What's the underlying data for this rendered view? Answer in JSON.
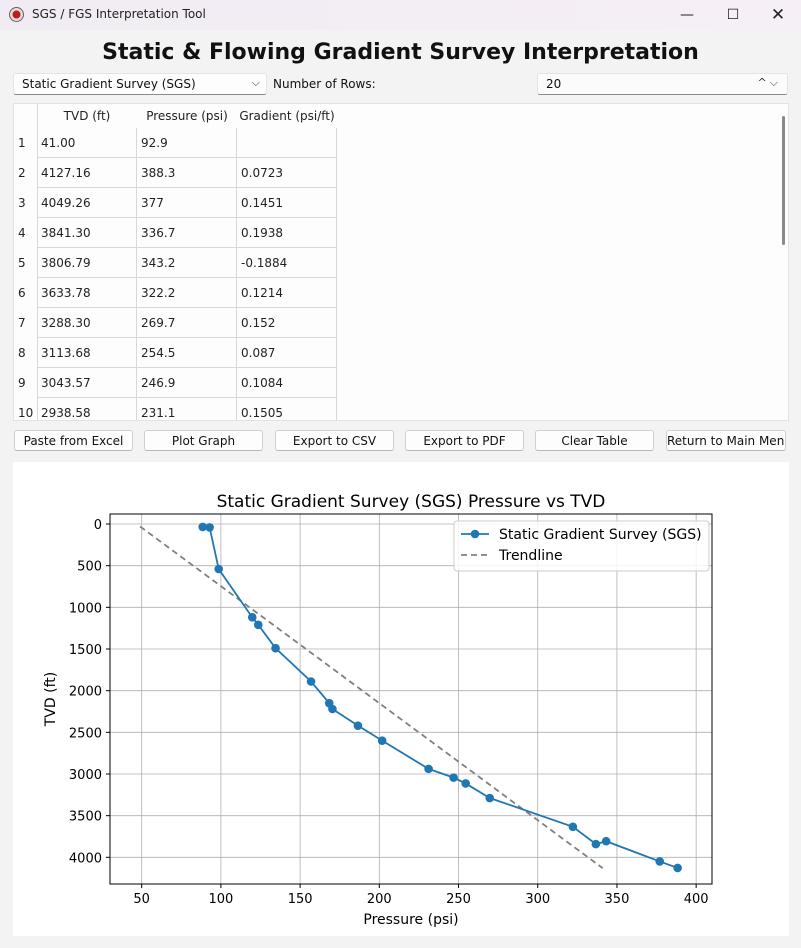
{
  "window": {
    "title": "SGS / FGS Interpretation Tool",
    "minimize_glyph": "—",
    "maximize_glyph": "☐",
    "close_glyph": "✕"
  },
  "heading": "Static & Flowing Gradient Survey Interpretation",
  "survey_select": {
    "value": "Static Gradient Survey (SGS)",
    "caret": "⌵"
  },
  "rows_control": {
    "label": "Number of Rows:",
    "value": "20",
    "arrows": "^⌵"
  },
  "table": {
    "headers": [
      "TVD (ft)",
      "Pressure (psi)",
      "Gradient (psi/ft)"
    ],
    "rows": [
      {
        "n": "1",
        "tvd": "41.00",
        "pressure": "92.9",
        "gradient": ""
      },
      {
        "n": "2",
        "tvd": "4127.16",
        "pressure": "388.3",
        "gradient": "0.0723"
      },
      {
        "n": "3",
        "tvd": "4049.26",
        "pressure": "377",
        "gradient": "0.1451"
      },
      {
        "n": "4",
        "tvd": "3841.30",
        "pressure": "336.7",
        "gradient": "0.1938"
      },
      {
        "n": "5",
        "tvd": "3806.79",
        "pressure": "343.2",
        "gradient": "-0.1884"
      },
      {
        "n": "6",
        "tvd": "3633.78",
        "pressure": "322.2",
        "gradient": "0.1214"
      },
      {
        "n": "7",
        "tvd": "3288.30",
        "pressure": "269.7",
        "gradient": "0.152"
      },
      {
        "n": "8",
        "tvd": "3113.68",
        "pressure": "254.5",
        "gradient": "0.087"
      },
      {
        "n": "9",
        "tvd": "3043.57",
        "pressure": "246.9",
        "gradient": "0.1084"
      },
      {
        "n": "10",
        "tvd": "2938.58",
        "pressure": "231.1",
        "gradient": "0.1505"
      }
    ]
  },
  "buttons": {
    "paste": "Paste from Excel",
    "plot": "Plot Graph",
    "export_csv": "Export to CSV",
    "export_pdf": "Export to PDF",
    "clear": "Clear Table",
    "return": "Return to Main Menu"
  },
  "chart_data": {
    "type": "line",
    "title": "Static Gradient Survey (SGS) Pressure vs TVD",
    "xlabel": "Pressure (psi)",
    "ylabel": "TVD (ft)",
    "xlim": [
      30,
      410
    ],
    "ylim": [
      4320,
      -120
    ],
    "y_inverted": true,
    "xticks": [
      50,
      100,
      150,
      200,
      250,
      300,
      350,
      400
    ],
    "yticks": [
      0,
      500,
      1000,
      1500,
      2000,
      2500,
      3000,
      3500,
      4000
    ],
    "grid": true,
    "legend_position": "top-right",
    "series": [
      {
        "name": "Static Gradient Survey (SGS)",
        "style": "line-markers",
        "color": "#1f77b4",
        "x": [
          88.5,
          92.9,
          98.6,
          119.8,
          123.6,
          134.5,
          156.9,
          168.4,
          170.4,
          186.5,
          201.8,
          231.1,
          246.9,
          254.5,
          269.7,
          322.2,
          336.7,
          343.2,
          377.0,
          388.3
        ],
        "y": [
          35,
          41,
          540,
          1120,
          1210,
          1490,
          1890,
          2150,
          2220,
          2420,
          2600,
          2938.58,
          3043.57,
          3113.68,
          3288.3,
          3633.78,
          3841.3,
          3806.79,
          4049.26,
          4127.16
        ]
      },
      {
        "name": "Trendline",
        "style": "dashed",
        "color": "#808080",
        "x": [
          49,
          341
        ],
        "y": [
          30,
          4130
        ]
      }
    ]
  }
}
